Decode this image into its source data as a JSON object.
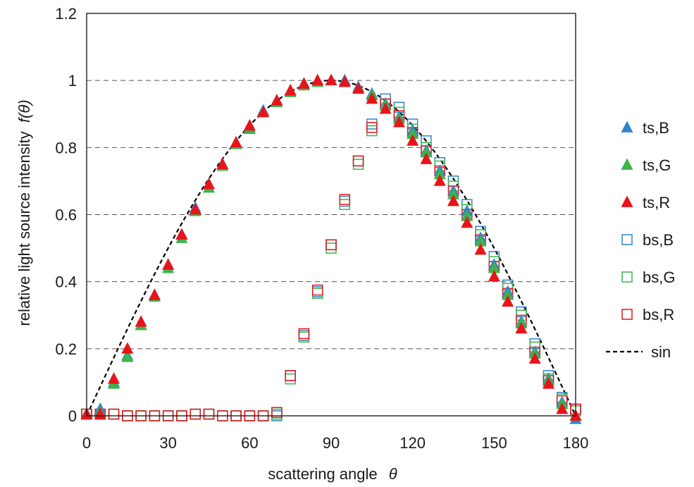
{
  "chart_data": {
    "type": "scatter",
    "title": "",
    "xlabel": {
      "text": "scattering angle",
      "symbol": "θ"
    },
    "ylabel": {
      "text": "relative light source intensity",
      "symbol": "f(θ)"
    },
    "xlim": [
      0,
      180
    ],
    "ylim": [
      0,
      1.2
    ],
    "xticks": [
      0,
      30,
      60,
      90,
      120,
      150,
      180
    ],
    "yticks": [
      0,
      0.2,
      0.4,
      0.6,
      0.8,
      1,
      1.2
    ],
    "xtick_labels": [
      "0",
      "30",
      "60",
      "90",
      "120",
      "150",
      "180"
    ],
    "ytick_labels": [
      "0",
      "0.2",
      "0.4",
      "0.6",
      "0.8",
      "1",
      "1.2"
    ],
    "grid": {
      "horizontal": true,
      "style": "dashed"
    },
    "legend": {
      "position": "right"
    },
    "x": [
      0,
      5,
      10,
      15,
      20,
      25,
      30,
      35,
      40,
      45,
      50,
      55,
      60,
      65,
      70,
      75,
      80,
      85,
      90,
      95,
      100,
      105,
      110,
      115,
      120,
      125,
      130,
      135,
      140,
      145,
      150,
      155,
      160,
      165,
      170,
      175,
      180
    ],
    "series": [
      {
        "name": "ts,B",
        "marker": "triangle",
        "color": "#2e86c9",
        "values": [
          0.005,
          0.02,
          0.1,
          0.18,
          0.27,
          0.36,
          0.45,
          0.54,
          0.62,
          0.69,
          0.75,
          0.81,
          0.86,
          0.91,
          0.94,
          0.97,
          0.99,
          1.0,
          1.0,
          1.0,
          0.98,
          0.96,
          0.93,
          0.89,
          0.85,
          0.79,
          0.73,
          0.67,
          0.61,
          0.53,
          0.45,
          0.37,
          0.28,
          0.19,
          0.11,
          0.04,
          -0.01
        ]
      },
      {
        "name": "ts,G",
        "marker": "triangle",
        "color": "#3cb44b",
        "values": [
          0.005,
          0.01,
          0.095,
          0.175,
          0.27,
          0.355,
          0.44,
          0.53,
          0.61,
          0.68,
          0.745,
          0.81,
          0.855,
          0.905,
          0.935,
          0.965,
          0.985,
          0.995,
          1.0,
          0.995,
          0.975,
          0.955,
          0.925,
          0.885,
          0.84,
          0.785,
          0.72,
          0.66,
          0.595,
          0.52,
          0.44,
          0.36,
          0.275,
          0.185,
          0.105,
          0.035,
          0.0
        ]
      },
      {
        "name": "ts,R",
        "marker": "triangle",
        "color": "#e8141c",
        "values": [
          0.005,
          0.005,
          0.11,
          0.2,
          0.28,
          0.36,
          0.45,
          0.54,
          0.615,
          0.69,
          0.75,
          0.815,
          0.865,
          0.905,
          0.94,
          0.97,
          0.99,
          1.0,
          1.0,
          0.995,
          0.975,
          0.945,
          0.915,
          0.875,
          0.82,
          0.765,
          0.7,
          0.64,
          0.575,
          0.495,
          0.415,
          0.34,
          0.26,
          0.17,
          0.095,
          0.02,
          0.0
        ]
      },
      {
        "name": "bs,B",
        "marker": "square-open",
        "color": "#2e86c9",
        "values": [
          0.005,
          0.005,
          0.005,
          0.0,
          0.0,
          0.0,
          0.0,
          0.0,
          0.005,
          0.005,
          0.0,
          0.0,
          0.0,
          0.0,
          0.0,
          0.12,
          0.24,
          0.37,
          0.51,
          0.64,
          0.76,
          0.87,
          0.945,
          0.92,
          0.87,
          0.82,
          0.755,
          0.7,
          0.63,
          0.55,
          0.475,
          0.39,
          0.31,
          0.215,
          0.12,
          0.055,
          0.02
        ]
      },
      {
        "name": "bs,G",
        "marker": "square-open",
        "color": "#3cb44b",
        "values": [
          0.005,
          0.005,
          0.005,
          0.0,
          0.0,
          0.0,
          0.0,
          0.0,
          0.005,
          0.005,
          0.0,
          0.0,
          0.0,
          0.0,
          0.005,
          0.11,
          0.235,
          0.365,
          0.5,
          0.63,
          0.75,
          0.85,
          0.93,
          0.905,
          0.855,
          0.8,
          0.745,
          0.685,
          0.615,
          0.54,
          0.46,
          0.38,
          0.3,
          0.205,
          0.11,
          0.05,
          0.015
        ]
      },
      {
        "name": "bs,R",
        "marker": "square-open",
        "color": "#e8141c",
        "values": [
          0.005,
          0.005,
          0.005,
          0.0,
          0.0,
          0.0,
          0.0,
          0.0,
          0.005,
          0.005,
          0.0,
          0.0,
          0.0,
          0.0,
          0.01,
          0.12,
          0.245,
          0.375,
          0.51,
          0.645,
          0.76,
          0.86,
          0.93,
          0.895,
          0.845,
          0.79,
          0.73,
          0.67,
          0.6,
          0.525,
          0.445,
          0.365,
          0.285,
          0.19,
          0.105,
          0.045,
          0.02
        ]
      },
      {
        "name": "sin",
        "marker": "none",
        "line": "dashed",
        "color": "#000000",
        "function": "sin(θ)"
      }
    ]
  }
}
